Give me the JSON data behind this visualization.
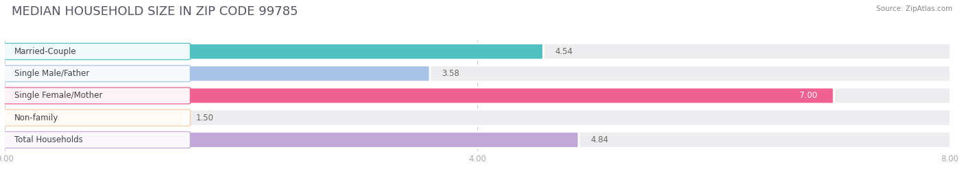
{
  "title": "MEDIAN HOUSEHOLD SIZE IN ZIP CODE 99785",
  "source": "Source: ZipAtlas.com",
  "categories": [
    "Married-Couple",
    "Single Male/Father",
    "Single Female/Mother",
    "Non-family",
    "Total Households"
  ],
  "values": [
    4.54,
    3.58,
    7.0,
    1.5,
    4.84
  ],
  "bar_colors": [
    "#50C0C0",
    "#A8C4E8",
    "#F06090",
    "#F5D0A0",
    "#C0A8D8"
  ],
  "bar_bg_color": "#EDEDF0",
  "xlim": [
    0,
    8.0
  ],
  "xticks": [
    0.0,
    4.0,
    8.0
  ],
  "xticklabels": [
    "0.00",
    "4.00",
    "8.00"
  ],
  "background_color": "#ffffff",
  "title_fontsize": 13,
  "label_fontsize": 8.5,
  "value_fontsize": 8.5,
  "bar_height": 0.7,
  "bar_gap": 0.3
}
